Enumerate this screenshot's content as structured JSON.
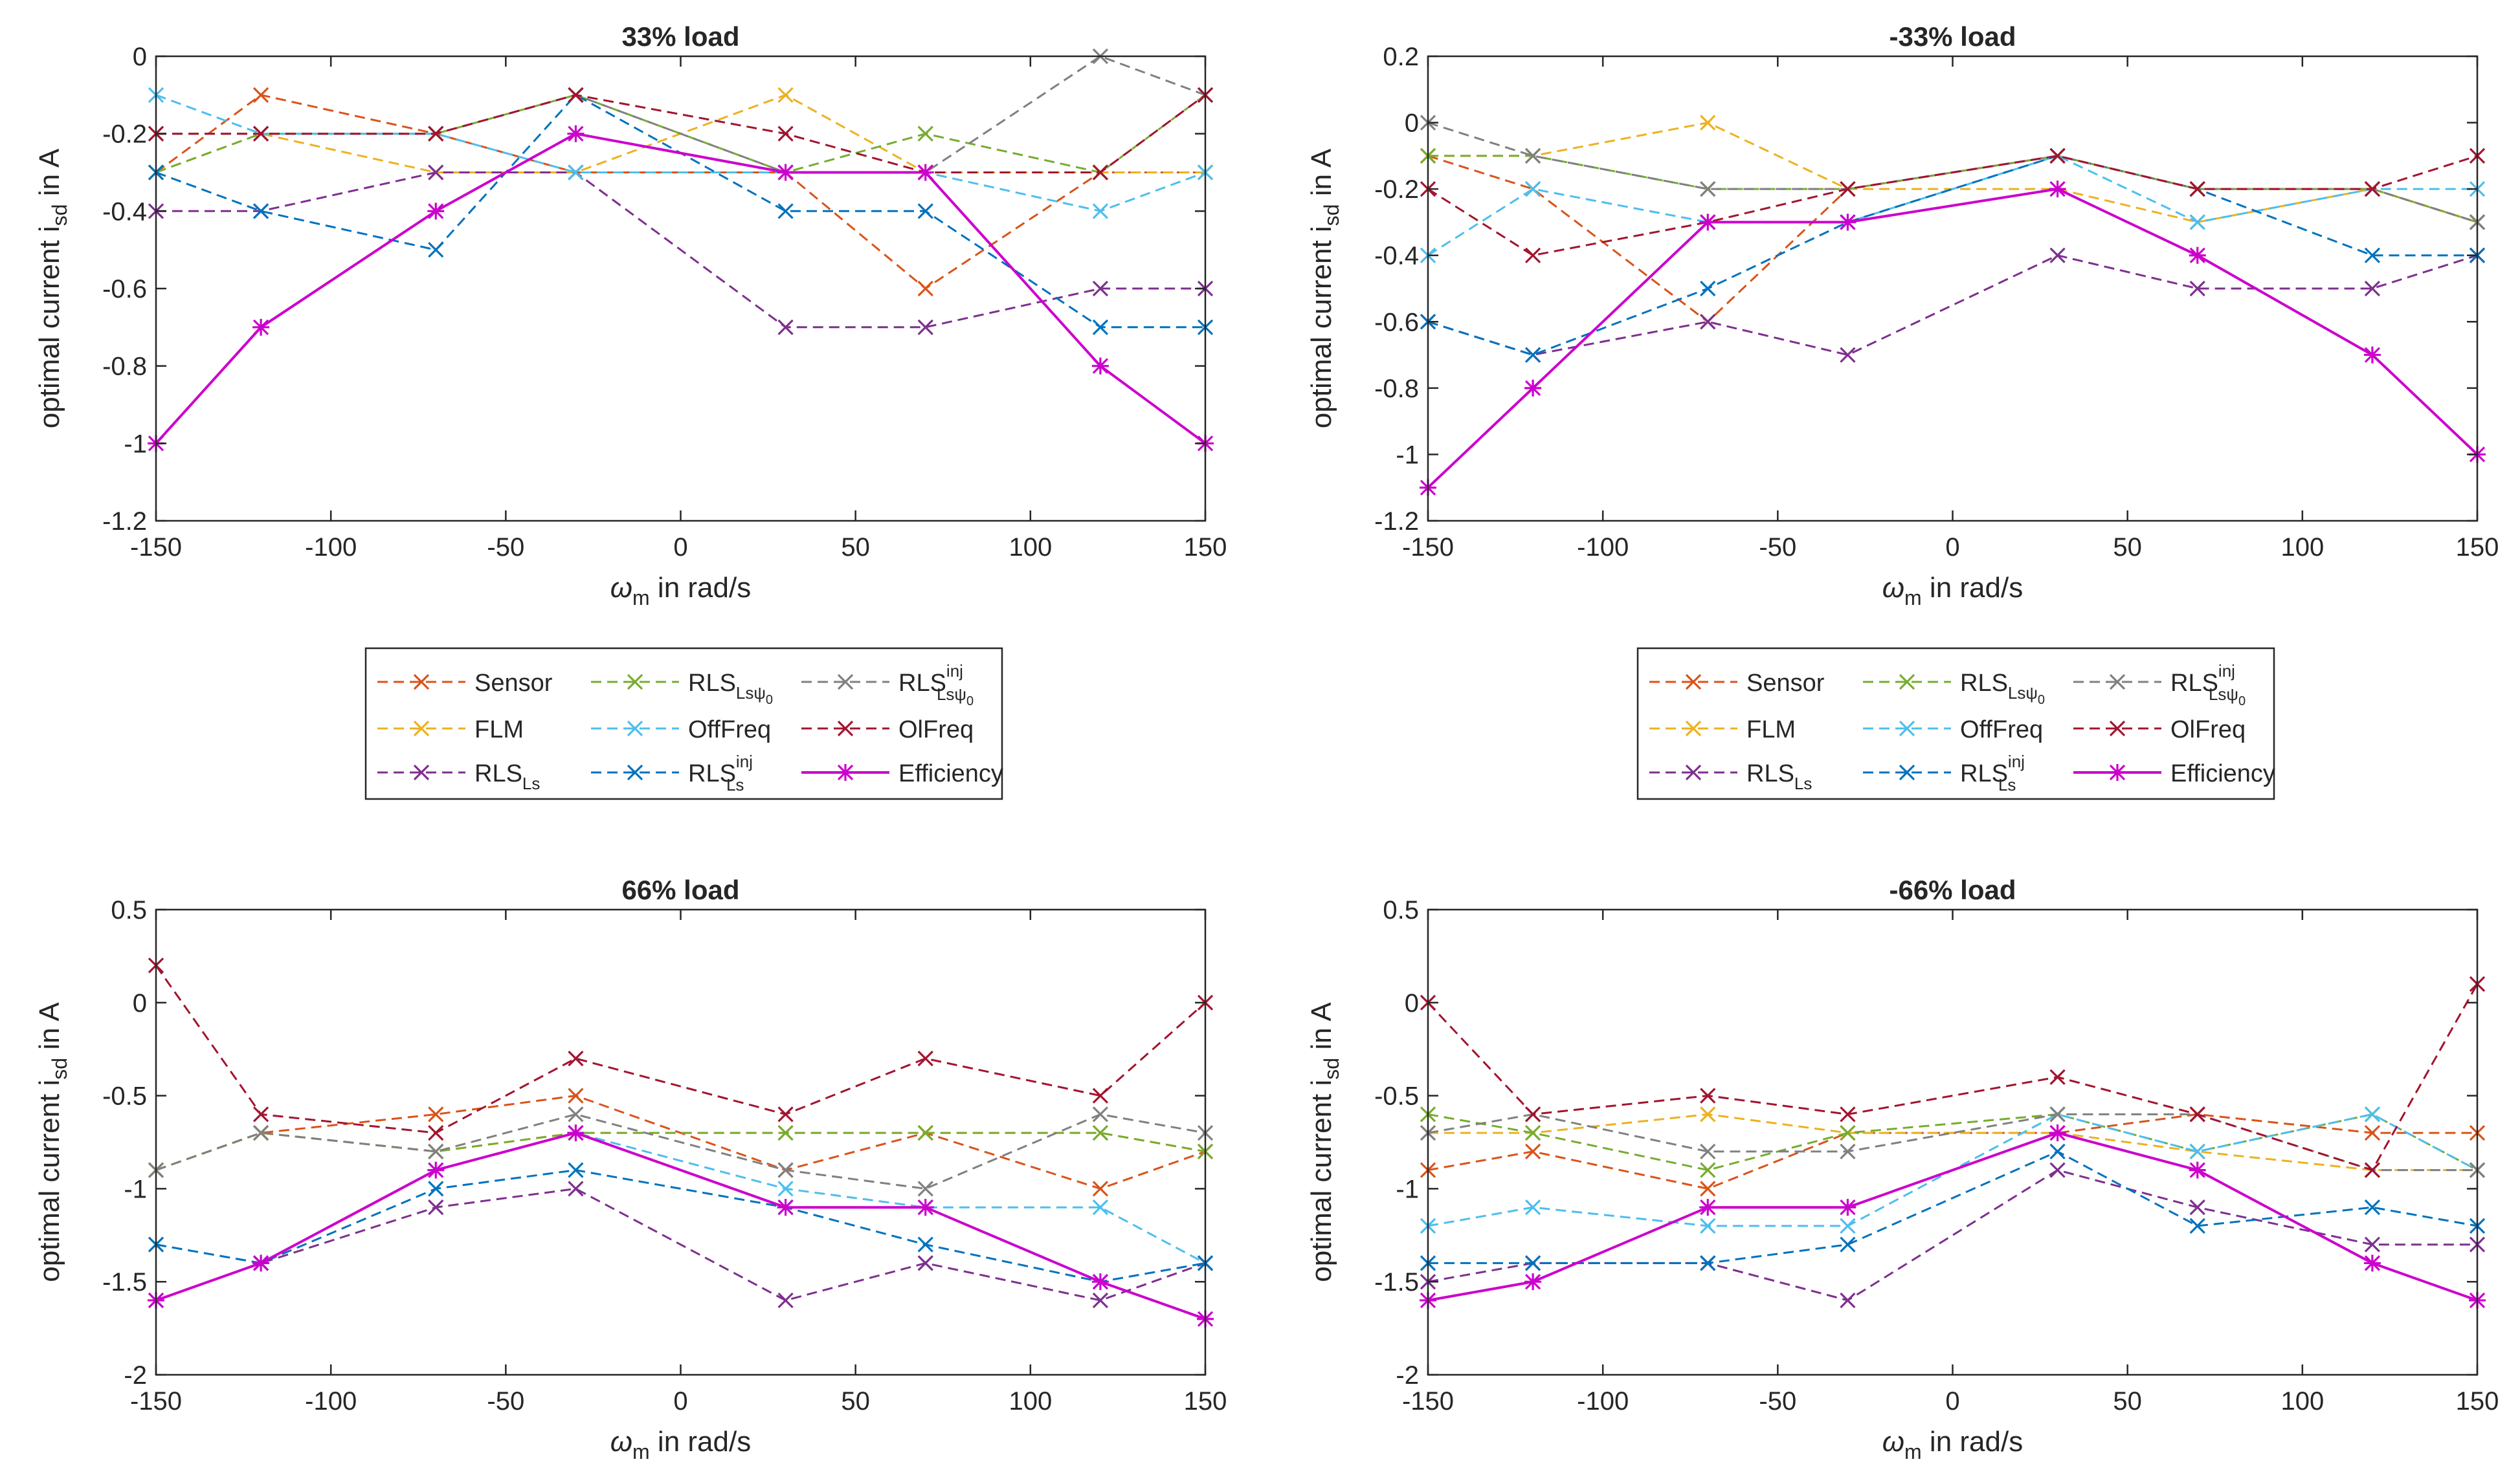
{
  "common": {
    "x": [
      -150,
      -120,
      -70,
      -30,
      30,
      70,
      120,
      150
    ],
    "xticks": [
      -150,
      -100,
      -50,
      0,
      50,
      100,
      150
    ],
    "xlabel_symbol": "ω",
    "xlabel_sub": "m",
    "xlabel_rest": " in rad/s",
    "ylabel_main": "optimal current i",
    "ylabel_sub": "sd",
    "ylabel_rest": " in A"
  },
  "legend": {
    "entries": [
      {
        "key": "sensor",
        "base": "Sensor",
        "sub": "",
        "sup": ""
      },
      {
        "key": "rls_lspsi",
        "base": "RLS",
        "sub": "Lsψ",
        "subsub": "0",
        "sup": ""
      },
      {
        "key": "rls_inj_lspsi",
        "base": "RLS",
        "sub": "Lsψ",
        "subsub": "0",
        "sup": "inj"
      },
      {
        "key": "flm",
        "base": "FLM",
        "sub": "",
        "sup": ""
      },
      {
        "key": "offfreq",
        "base": "OffFreq",
        "sub": "",
        "sup": ""
      },
      {
        "key": "olfreq",
        "base": "OlFreq",
        "sub": "",
        "sup": ""
      },
      {
        "key": "rls_ls",
        "base": "RLS",
        "sub": "Ls",
        "sup": ""
      },
      {
        "key": "rls_inj_ls",
        "base": "RLS",
        "sub": "Ls",
        "sup": "inj"
      },
      {
        "key": "efficiency",
        "base": "Efficiency",
        "sub": "",
        "sup": ""
      }
    ]
  },
  "styles": {
    "sensor": {
      "color": "#D95319",
      "dash": true,
      "marker": "x"
    },
    "flm": {
      "color": "#EDB120",
      "dash": true,
      "marker": "x"
    },
    "rls_ls": {
      "color": "#7E2F8E",
      "dash": true,
      "marker": "x"
    },
    "rls_lspsi": {
      "color": "#77AC30",
      "dash": true,
      "marker": "x"
    },
    "offfreq": {
      "color": "#4DBEEE",
      "dash": true,
      "marker": "x"
    },
    "rls_inj_ls": {
      "color": "#0072BD",
      "dash": true,
      "marker": "x"
    },
    "rls_inj_lspsi": {
      "color": "#808080",
      "dash": true,
      "marker": "x"
    },
    "olfreq": {
      "color": "#A2142F",
      "dash": true,
      "marker": "x"
    },
    "efficiency": {
      "color": "#CC00CC",
      "dash": false,
      "marker": "*"
    }
  },
  "chart_data": [
    {
      "type": "line",
      "title": "33% load",
      "ylim": [
        -1.2,
        0
      ],
      "yticks": [
        -1.2,
        -1,
        -0.8,
        -0.6,
        -0.4,
        -0.2,
        0
      ],
      "ytick_labels": [
        "-1.2",
        "-1",
        "-0.8",
        "-0.6",
        "-0.4",
        "-0.2",
        "0"
      ],
      "series": [
        {
          "key": "sensor",
          "values": [
            -0.3,
            -0.1,
            -0.2,
            -0.3,
            -0.3,
            -0.6,
            -0.3,
            -0.3
          ]
        },
        {
          "key": "flm",
          "values": [
            -0.3,
            -0.2,
            -0.3,
            -0.3,
            -0.1,
            -0.3,
            -0.3,
            -0.3
          ]
        },
        {
          "key": "rls_ls",
          "values": [
            -0.4,
            -0.4,
            -0.3,
            -0.3,
            -0.7,
            -0.7,
            -0.6,
            -0.6
          ]
        },
        {
          "key": "rls_lspsi",
          "values": [
            -0.3,
            -0.2,
            -0.2,
            -0.1,
            -0.3,
            -0.2,
            -0.3,
            -0.1
          ]
        },
        {
          "key": "offfreq",
          "values": [
            -0.1,
            -0.2,
            -0.2,
            -0.3,
            -0.3,
            -0.3,
            -0.4,
            -0.3
          ]
        },
        {
          "key": "rls_inj_ls",
          "values": [
            -0.3,
            -0.4,
            -0.5,
            -0.1,
            -0.4,
            -0.4,
            -0.7,
            -0.7
          ]
        },
        {
          "key": "rls_inj_lspsi",
          "values": [
            -0.2,
            -0.2,
            -0.2,
            -0.1,
            -0.3,
            -0.3,
            0,
            -0.1
          ]
        },
        {
          "key": "olfreq",
          "values": [
            -0.2,
            -0.2,
            -0.2,
            -0.1,
            -0.2,
            -0.3,
            -0.3,
            -0.1
          ]
        },
        {
          "key": "efficiency",
          "values": [
            -1,
            -0.7,
            -0.4,
            -0.2,
            -0.3,
            -0.3,
            -0.8,
            -1
          ]
        }
      ]
    },
    {
      "type": "line",
      "title": "-33% load",
      "ylim": [
        -1.2,
        0.2
      ],
      "yticks": [
        -1.2,
        -1,
        -0.8,
        -0.6,
        -0.4,
        -0.2,
        0,
        0.2
      ],
      "ytick_labels": [
        "-1.2",
        "-1",
        "-0.8",
        "-0.6",
        "-0.4",
        "-0.2",
        "0",
        "0.2"
      ],
      "series": [
        {
          "key": "sensor",
          "values": [
            -0.1,
            -0.2,
            -0.6,
            -0.2,
            -0.1,
            -0.2,
            -0.2,
            -0.3
          ]
        },
        {
          "key": "flm",
          "values": [
            -0.1,
            -0.1,
            0,
            -0.2,
            -0.2,
            -0.3,
            -0.2,
            -0.3
          ]
        },
        {
          "key": "rls_ls",
          "values": [
            -0.6,
            -0.7,
            -0.6,
            -0.7,
            -0.4,
            -0.5,
            -0.5,
            -0.4
          ]
        },
        {
          "key": "rls_lspsi",
          "values": [
            -0.1,
            -0.1,
            -0.2,
            -0.2,
            -0.1,
            -0.2,
            -0.2,
            -0.3
          ]
        },
        {
          "key": "offfreq",
          "values": [
            -0.4,
            -0.2,
            -0.3,
            -0.3,
            -0.1,
            -0.3,
            -0.2,
            -0.2
          ]
        },
        {
          "key": "rls_inj_ls",
          "values": [
            -0.6,
            -0.7,
            -0.5,
            -0.3,
            -0.1,
            -0.2,
            -0.4,
            -0.4
          ]
        },
        {
          "key": "rls_inj_lspsi",
          "values": [
            0,
            -0.1,
            -0.2,
            -0.2,
            -0.1,
            -0.2,
            -0.2,
            -0.3
          ]
        },
        {
          "key": "olfreq",
          "values": [
            -0.2,
            -0.4,
            -0.3,
            -0.2,
            -0.1,
            -0.2,
            -0.2,
            -0.1
          ]
        },
        {
          "key": "efficiency",
          "values": [
            -1.1,
            -0.8,
            -0.3,
            -0.3,
            -0.2,
            -0.4,
            -0.7,
            -1
          ]
        }
      ]
    },
    {
      "type": "line",
      "title": "66% load",
      "ylim": [
        -2,
        0.5
      ],
      "yticks": [
        -2,
        -1.5,
        -1,
        -0.5,
        0,
        0.5
      ],
      "ytick_labels": [
        "-2",
        "-1.5",
        "-1",
        "-0.5",
        "0",
        "0.5"
      ],
      "series": [
        {
          "key": "sensor",
          "values": [
            -0.9,
            -0.7,
            -0.6,
            -0.5,
            -0.9,
            -0.7,
            -1,
            -0.8
          ]
        },
        {
          "key": "flm",
          "values": [
            -0.9,
            -0.7,
            -0.8,
            -0.7,
            -0.7,
            -0.7,
            -0.7,
            -0.8
          ]
        },
        {
          "key": "rls_ls",
          "values": [
            -1.6,
            -1.4,
            -1.1,
            -1,
            -1.6,
            -1.4,
            -1.6,
            -1.4
          ]
        },
        {
          "key": "rls_lspsi",
          "values": [
            -0.9,
            -0.7,
            -0.8,
            -0.7,
            -0.7,
            -0.7,
            -0.7,
            -0.8
          ]
        },
        {
          "key": "offfreq",
          "values": [
            -1.3,
            -1.4,
            -0.9,
            -0.7,
            -1,
            -1.1,
            -1.1,
            -1.4
          ]
        },
        {
          "key": "rls_inj_ls",
          "values": [
            -1.3,
            -1.4,
            -1,
            -0.9,
            -1.1,
            -1.3,
            -1.5,
            -1.4
          ]
        },
        {
          "key": "rls_inj_lspsi",
          "values": [
            -0.9,
            -0.7,
            -0.8,
            -0.6,
            -0.9,
            -1,
            -0.6,
            -0.7
          ]
        },
        {
          "key": "olfreq",
          "values": [
            0.2,
            -0.6,
            -0.7,
            -0.3,
            -0.6,
            -0.3,
            -0.5,
            0
          ]
        },
        {
          "key": "efficiency",
          "values": [
            -1.6,
            -1.4,
            -0.9,
            -0.7,
            -1.1,
            -1.1,
            -1.5,
            -1.7
          ]
        }
      ]
    },
    {
      "type": "line",
      "title": "-66% load",
      "ylim": [
        -2,
        0.5
      ],
      "yticks": [
        -2,
        -1.5,
        -1,
        -0.5,
        0,
        0.5
      ],
      "ytick_labels": [
        "-2",
        "-1.5",
        "-1",
        "-0.5",
        "0",
        "0.5"
      ],
      "series": [
        {
          "key": "sensor",
          "values": [
            -0.9,
            -0.8,
            -1,
            -0.7,
            -0.7,
            -0.6,
            -0.7,
            -0.7
          ]
        },
        {
          "key": "flm",
          "values": [
            -0.7,
            -0.7,
            -0.6,
            -0.7,
            -0.7,
            -0.8,
            -0.9,
            -0.9
          ]
        },
        {
          "key": "rls_ls",
          "values": [
            -1.5,
            -1.4,
            -1.4,
            -1.6,
            -0.9,
            -1.1,
            -1.3,
            -1.3
          ]
        },
        {
          "key": "rls_lspsi",
          "values": [
            -0.6,
            -0.7,
            -0.9,
            -0.7,
            -0.6,
            -0.8,
            -0.6,
            -0.9
          ]
        },
        {
          "key": "offfreq",
          "values": [
            -1.2,
            -1.1,
            -1.2,
            -1.2,
            -0.6,
            -0.8,
            -0.6,
            -0.9
          ]
        },
        {
          "key": "rls_inj_ls",
          "values": [
            -1.4,
            -1.4,
            -1.4,
            -1.3,
            -0.8,
            -1.2,
            -1.1,
            -1.2
          ]
        },
        {
          "key": "rls_inj_lspsi",
          "values": [
            -0.7,
            -0.6,
            -0.8,
            -0.8,
            -0.6,
            -0.6,
            -0.9,
            -0.9
          ]
        },
        {
          "key": "olfreq",
          "values": [
            0,
            -0.6,
            -0.5,
            -0.6,
            -0.4,
            -0.6,
            -0.9,
            0.1
          ]
        },
        {
          "key": "efficiency",
          "values": [
            -1.6,
            -1.5,
            -1.1,
            -1.1,
            -0.7,
            -0.9,
            -1.4,
            -1.6
          ]
        }
      ]
    }
  ]
}
